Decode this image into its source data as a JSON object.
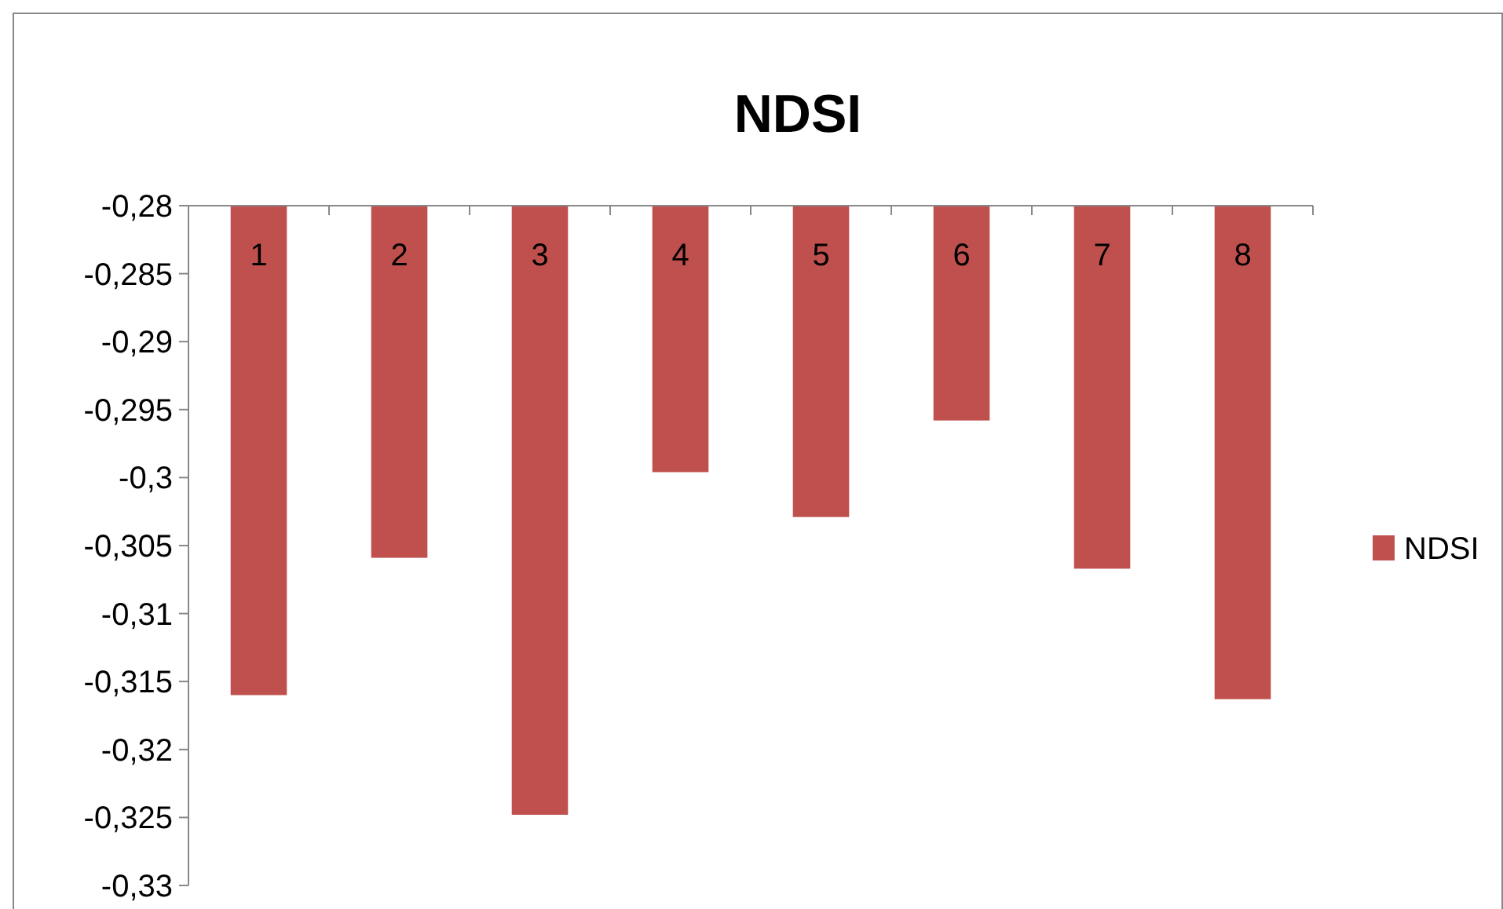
{
  "chart_data": {
    "type": "bar",
    "title": "NDSI",
    "categories": [
      "1",
      "2",
      "3",
      "4",
      "5",
      "6",
      "7",
      "8"
    ],
    "series": [
      {
        "name": "NDSI",
        "color": "#c0504d",
        "values": [
          -0.316,
          -0.3059,
          -0.3248,
          -0.2996,
          -0.3029,
          -0.2958,
          -0.3067,
          -0.3163
        ]
      }
    ],
    "ylim": [
      -0.33,
      -0.28
    ],
    "yticks": [
      {
        "value": -0.33,
        "label": "-0,33"
      },
      {
        "value": -0.325,
        "label": "-0,325"
      },
      {
        "value": -0.32,
        "label": "-0,32"
      },
      {
        "value": -0.315,
        "label": "-0,315"
      },
      {
        "value": -0.31,
        "label": "-0,31"
      },
      {
        "value": -0.305,
        "label": "-0,305"
      },
      {
        "value": -0.3,
        "label": "-0,3"
      },
      {
        "value": -0.295,
        "label": "-0,295"
      },
      {
        "value": -0.29,
        "label": "-0,29"
      },
      {
        "value": -0.285,
        "label": "-0,285"
      },
      {
        "value": -0.28,
        "label": "-0,28"
      }
    ],
    "grid": false,
    "legend": "right"
  }
}
